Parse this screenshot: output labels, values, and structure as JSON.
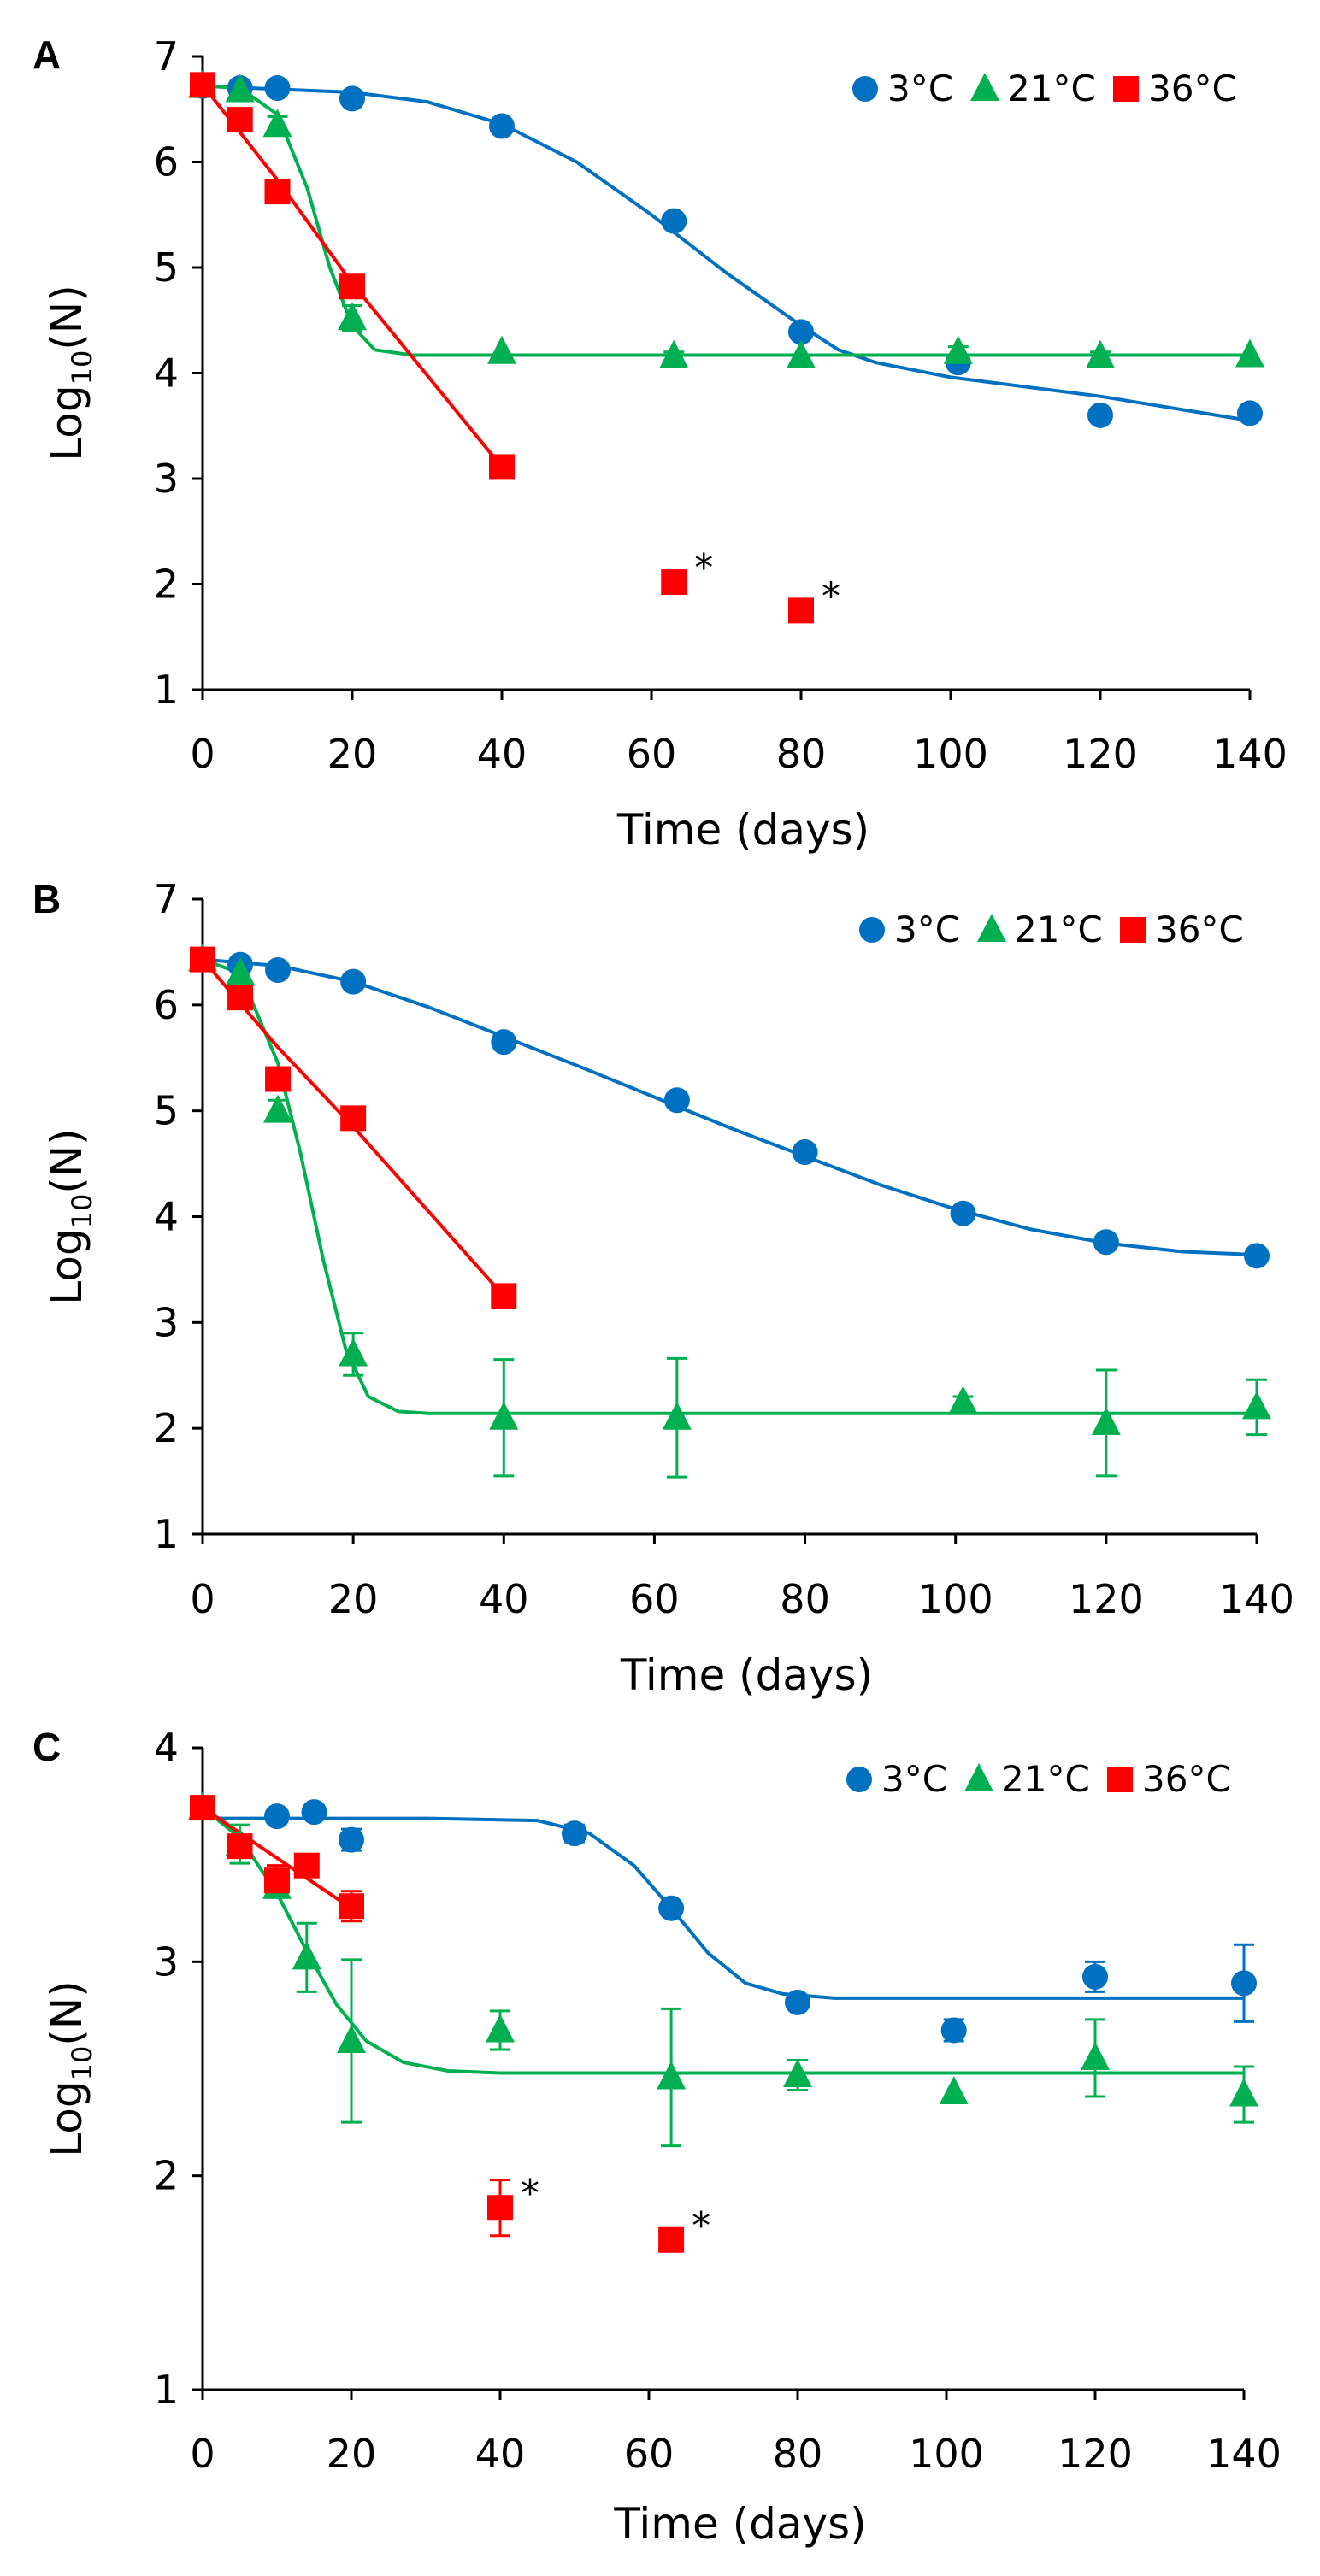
{
  "colors": {
    "c3": "#0070C0",
    "c21": "#00B050",
    "c36": "#FF0000",
    "axis": "#000000"
  },
  "chart_data": [
    {
      "type": "scatter",
      "panel_label": "A",
      "xlabel": "Time (days)",
      "ylabel_main": "Log",
      "ylabel_sub": "10",
      "ylabel_tail": "(N)",
      "xlim": [
        0,
        140
      ],
      "ylim": [
        1,
        7
      ],
      "xticks": [
        0,
        20,
        40,
        60,
        80,
        100,
        120,
        140
      ],
      "xtick_labels": [
        "0",
        "20",
        "40",
        "60",
        "80",
        "100",
        "120",
        "140"
      ],
      "yticks": [
        1,
        2,
        3,
        4,
        5,
        6,
        7
      ],
      "ytick_labels": [
        "1",
        "2",
        "3",
        "4",
        "5",
        "6",
        "7"
      ],
      "grid": false,
      "legend_position": "top-right",
      "series": [
        {
          "name": "3°C",
          "color_key": "c3",
          "marker": "circle",
          "points": [
            {
              "x": 0,
              "y": 6.72
            },
            {
              "x": 5,
              "y": 6.7
            },
            {
              "x": 10,
              "y": 6.7
            },
            {
              "x": 20,
              "y": 6.6
            },
            {
              "x": 40,
              "y": 6.34
            },
            {
              "x": 63,
              "y": 5.44
            },
            {
              "x": 80,
              "y": 4.39
            },
            {
              "x": 101,
              "y": 4.1
            },
            {
              "x": 120,
              "y": 3.6
            },
            {
              "x": 140,
              "y": 3.62
            }
          ],
          "fit": [
            {
              "x": 0,
              "y": 6.72
            },
            {
              "x": 20,
              "y": 6.66
            },
            {
              "x": 30,
              "y": 6.57
            },
            {
              "x": 40,
              "y": 6.36
            },
            {
              "x": 50,
              "y": 6.0
            },
            {
              "x": 60,
              "y": 5.5
            },
            {
              "x": 70,
              "y": 4.95
            },
            {
              "x": 80,
              "y": 4.45
            },
            {
              "x": 85,
              "y": 4.22
            },
            {
              "x": 90,
              "y": 4.1
            },
            {
              "x": 100,
              "y": 3.96
            },
            {
              "x": 120,
              "y": 3.78
            },
            {
              "x": 140,
              "y": 3.55
            }
          ]
        },
        {
          "name": "21°C",
          "color_key": "c21",
          "marker": "triangle",
          "points": [
            {
              "x": 0,
              "y": 6.72
            },
            {
              "x": 5,
              "y": 6.68
            },
            {
              "x": 10,
              "y": 6.35
            },
            {
              "x": 20,
              "y": 4.52
            },
            {
              "x": 40,
              "y": 4.2
            },
            {
              "x": 63,
              "y": 4.16
            },
            {
              "x": 80,
              "y": 4.16
            },
            {
              "x": 101,
              "y": 4.2
            },
            {
              "x": 120,
              "y": 4.16
            },
            {
              "x": 140,
              "y": 4.17
            }
          ],
          "errors": [
            0.02,
            0.03,
            0.08,
            0.12,
            0.03,
            0.04,
            0.03,
            0.05,
            0.04,
            0.03
          ],
          "fit": [
            {
              "x": 0,
              "y": 6.72
            },
            {
              "x": 5,
              "y": 6.7
            },
            {
              "x": 10,
              "y": 6.45
            },
            {
              "x": 14,
              "y": 5.75
            },
            {
              "x": 17,
              "y": 5.0
            },
            {
              "x": 20,
              "y": 4.45
            },
            {
              "x": 23,
              "y": 4.22
            },
            {
              "x": 28,
              "y": 4.17
            },
            {
              "x": 140,
              "y": 4.17
            }
          ]
        },
        {
          "name": "36°C",
          "color_key": "c36",
          "marker": "square",
          "points": [
            {
              "x": 0,
              "y": 6.73
            },
            {
              "x": 5,
              "y": 6.4
            },
            {
              "x": 10,
              "y": 5.72
            },
            {
              "x": 20,
              "y": 4.82
            },
            {
              "x": 40,
              "y": 3.11
            }
          ],
          "marked_points": [
            {
              "x": 63,
              "y": 2.02
            },
            {
              "x": 80,
              "y": 1.75
            }
          ],
          "marked_symbol": "*",
          "fit": [
            {
              "x": 0,
              "y": 6.73
            },
            {
              "x": 10,
              "y": 5.83
            },
            {
              "x": 20,
              "y": 4.85
            },
            {
              "x": 40,
              "y": 3.11
            }
          ]
        }
      ]
    },
    {
      "type": "scatter",
      "panel_label": "B",
      "xlabel": "Time (days)",
      "ylabel_main": "Log",
      "ylabel_sub": "10",
      "ylabel_tail": "(N)",
      "xlim": [
        0,
        140
      ],
      "ylim": [
        1,
        7
      ],
      "xticks": [
        0,
        20,
        40,
        60,
        80,
        100,
        120,
        140
      ],
      "xtick_labels": [
        "0",
        "20",
        "40",
        "60",
        "80",
        "100",
        "120",
        "140"
      ],
      "yticks": [
        1,
        2,
        3,
        4,
        5,
        6,
        7
      ],
      "ytick_labels": [
        "1",
        "2",
        "3",
        "4",
        "5",
        "6",
        "7"
      ],
      "grid": false,
      "legend_position": "top-right",
      "series": [
        {
          "name": "3°C",
          "color_key": "c3",
          "marker": "circle",
          "points": [
            {
              "x": 0,
              "y": 6.43
            },
            {
              "x": 5,
              "y": 6.38
            },
            {
              "x": 10,
              "y": 6.33
            },
            {
              "x": 20,
              "y": 6.22
            },
            {
              "x": 40,
              "y": 5.65
            },
            {
              "x": 63,
              "y": 5.1
            },
            {
              "x": 80,
              "y": 4.61
            },
            {
              "x": 101,
              "y": 4.03
            },
            {
              "x": 120,
              "y": 3.76
            },
            {
              "x": 140,
              "y": 3.63
            }
          ],
          "fit": [
            {
              "x": 0,
              "y": 6.43
            },
            {
              "x": 10,
              "y": 6.37
            },
            {
              "x": 20,
              "y": 6.22
            },
            {
              "x": 30,
              "y": 5.98
            },
            {
              "x": 40,
              "y": 5.7
            },
            {
              "x": 50,
              "y": 5.42
            },
            {
              "x": 60,
              "y": 5.13
            },
            {
              "x": 70,
              "y": 4.84
            },
            {
              "x": 80,
              "y": 4.57
            },
            {
              "x": 90,
              "y": 4.3
            },
            {
              "x": 100,
              "y": 4.07
            },
            {
              "x": 110,
              "y": 3.88
            },
            {
              "x": 120,
              "y": 3.75
            },
            {
              "x": 130,
              "y": 3.67
            },
            {
              "x": 140,
              "y": 3.64
            }
          ]
        },
        {
          "name": "21°C",
          "color_key": "c21",
          "marker": "triangle",
          "points": [
            {
              "x": 0,
              "y": 6.43
            },
            {
              "x": 5,
              "y": 6.3
            },
            {
              "x": 10,
              "y": 5.0
            },
            {
              "x": 20,
              "y": 2.7
            },
            {
              "x": 40,
              "y": 2.1
            },
            {
              "x": 63,
              "y": 2.1
            },
            {
              "x": 101,
              "y": 2.25
            },
            {
              "x": 120,
              "y": 2.05
            },
            {
              "x": 140,
              "y": 2.2
            }
          ],
          "errors": [
            0.03,
            0.05,
            0.1,
            0.2,
            0.55,
            0.56,
            0.05,
            0.5,
            0.26
          ],
          "fit": [
            {
              "x": 0,
              "y": 6.43
            },
            {
              "x": 5,
              "y": 6.3
            },
            {
              "x": 10,
              "y": 5.45
            },
            {
              "x": 13,
              "y": 4.6
            },
            {
              "x": 16,
              "y": 3.6
            },
            {
              "x": 19,
              "y": 2.75
            },
            {
              "x": 22,
              "y": 2.3
            },
            {
              "x": 26,
              "y": 2.16
            },
            {
              "x": 30,
              "y": 2.14
            },
            {
              "x": 140,
              "y": 2.14
            }
          ]
        },
        {
          "name": "36°C",
          "color_key": "c36",
          "marker": "square",
          "points": [
            {
              "x": 0,
              "y": 6.43
            },
            {
              "x": 5,
              "y": 6.07
            },
            {
              "x": 10,
              "y": 5.3
            },
            {
              "x": 20,
              "y": 4.93
            },
            {
              "x": 40,
              "y": 3.25
            }
          ],
          "marked_points": [],
          "marked_symbol": "*",
          "fit": [
            {
              "x": 0,
              "y": 6.43
            },
            {
              "x": 10,
              "y": 5.6
            },
            {
              "x": 20,
              "y": 4.85
            },
            {
              "x": 40,
              "y": 3.25
            }
          ]
        }
      ]
    },
    {
      "type": "scatter",
      "panel_label": "C",
      "xlabel": "Time (days)",
      "ylabel_main": "Log",
      "ylabel_sub": "10",
      "ylabel_tail": "(N)",
      "xlim": [
        0,
        140
      ],
      "ylim": [
        1,
        4
      ],
      "xticks": [
        0,
        20,
        40,
        60,
        80,
        100,
        120,
        140
      ],
      "xtick_labels": [
        "0",
        "20",
        "40",
        "60",
        "80",
        "100",
        "120",
        "140"
      ],
      "yticks": [
        1,
        2,
        3,
        4
      ],
      "ytick_labels": [
        "1",
        "2",
        "3",
        "4"
      ],
      "grid": false,
      "legend_position": "top-right",
      "series": [
        {
          "name": "3°C",
          "color_key": "c3",
          "marker": "circle",
          "points": [
            {
              "x": 0,
              "y": 3.72
            },
            {
              "x": 10,
              "y": 3.68
            },
            {
              "x": 15,
              "y": 3.7
            },
            {
              "x": 20,
              "y": 3.57
            },
            {
              "x": 50,
              "y": 3.6
            },
            {
              "x": 63,
              "y": 3.25
            },
            {
              "x": 80,
              "y": 2.81
            },
            {
              "x": 101,
              "y": 2.68
            },
            {
              "x": 120,
              "y": 2.93
            },
            {
              "x": 140,
              "y": 2.9
            }
          ],
          "errors": [
            0.02,
            0.03,
            0.02,
            0.05,
            0.04,
            0.03,
            0.03,
            0.05,
            0.07,
            0.18
          ],
          "fit": [
            {
              "x": 0,
              "y": 3.67
            },
            {
              "x": 30,
              "y": 3.67
            },
            {
              "x": 45,
              "y": 3.66
            },
            {
              "x": 52,
              "y": 3.6
            },
            {
              "x": 58,
              "y": 3.45
            },
            {
              "x": 63,
              "y": 3.25
            },
            {
              "x": 68,
              "y": 3.04
            },
            {
              "x": 73,
              "y": 2.9
            },
            {
              "x": 78,
              "y": 2.85
            },
            {
              "x": 85,
              "y": 2.83
            },
            {
              "x": 140,
              "y": 2.83
            }
          ]
        },
        {
          "name": "21°C",
          "color_key": "c21",
          "marker": "triangle",
          "points": [
            {
              "x": 0,
              "y": 3.72
            },
            {
              "x": 5,
              "y": 3.55
            },
            {
              "x": 10,
              "y": 3.35
            },
            {
              "x": 14,
              "y": 3.02
            },
            {
              "x": 20,
              "y": 2.63
            },
            {
              "x": 40,
              "y": 2.68
            },
            {
              "x": 63,
              "y": 2.46
            },
            {
              "x": 80,
              "y": 2.47
            },
            {
              "x": 101,
              "y": 2.39
            },
            {
              "x": 120,
              "y": 2.55
            },
            {
              "x": 140,
              "y": 2.38
            }
          ],
          "errors": [
            0.02,
            0.09,
            0.05,
            0.16,
            0.38,
            0.09,
            0.32,
            0.07,
            0.03,
            0.18,
            0.13
          ],
          "fit": [
            {
              "x": 0,
              "y": 3.72
            },
            {
              "x": 5,
              "y": 3.58
            },
            {
              "x": 10,
              "y": 3.32
            },
            {
              "x": 14,
              "y": 3.05
            },
            {
              "x": 18,
              "y": 2.8
            },
            {
              "x": 22,
              "y": 2.63
            },
            {
              "x": 27,
              "y": 2.53
            },
            {
              "x": 33,
              "y": 2.49
            },
            {
              "x": 40,
              "y": 2.48
            },
            {
              "x": 140,
              "y": 2.48
            }
          ]
        },
        {
          "name": "36°C",
          "color_key": "c36",
          "marker": "square",
          "points": [
            {
              "x": 0,
              "y": 3.72
            },
            {
              "x": 5,
              "y": 3.54
            },
            {
              "x": 10,
              "y": 3.38
            },
            {
              "x": 14,
              "y": 3.45
            },
            {
              "x": 20,
              "y": 3.26
            }
          ],
          "errors": [
            0.02,
            0.05,
            0.07,
            0.03,
            0.07
          ],
          "marked_points": [
            {
              "x": 40,
              "y": 1.85
            },
            {
              "x": 63,
              "y": 1.7
            }
          ],
          "marked_errors": [
            0.13,
            0.02
          ],
          "marked_symbol": "*",
          "fit": [
            {
              "x": 0,
              "y": 3.72
            },
            {
              "x": 20,
              "y": 3.25
            }
          ]
        }
      ]
    }
  ]
}
